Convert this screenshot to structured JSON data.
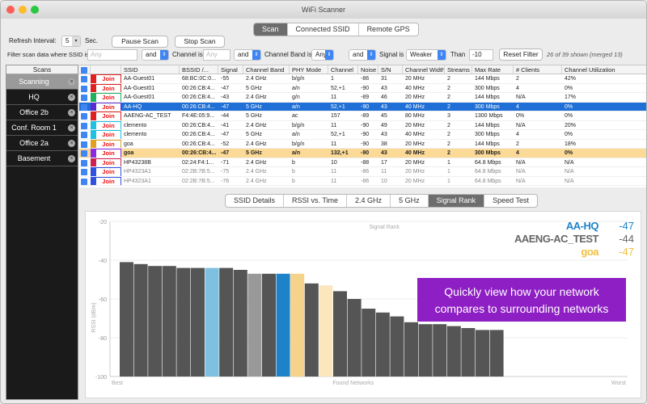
{
  "window": {
    "title": "WiFi Scanner"
  },
  "top_tabs": [
    "Scan",
    "Connected SSID",
    "Remote GPS"
  ],
  "controls": {
    "refresh_label": "Refresh Interval:",
    "refresh_value": "5",
    "refresh_unit": "Sec.",
    "pause_label": "Pause Scan",
    "stop_label": "Stop Scan"
  },
  "filter": {
    "prefix": "Filter scan data where SSID is",
    "ssid_placeholder": "Any",
    "and1": "and",
    "channel_label": "Channel is",
    "channel_placeholder": "Any",
    "and2": "and",
    "band_label": "Channel Band is",
    "band_value": "Any",
    "and3": "and",
    "signal_label": "Signal is",
    "signal_value": "Weaker",
    "than_label": "Than",
    "than_value": "-10",
    "reset_label": "Reset Filter",
    "summary": "26 of 39 shown (merged 13)"
  },
  "sidebar": {
    "header": "Scans",
    "items": [
      "Scanning",
      "HQ",
      "Office 2b",
      "Conf. Room 1",
      "Office 2a",
      "Basement"
    ]
  },
  "table": {
    "columns": [
      "SSID",
      "BSSID /...",
      "Signal",
      "Channel Band",
      "PHY Mode",
      "Channel",
      "Noise",
      "S/N",
      "Channel Width",
      "Streams",
      "Max Rate",
      "# Clients",
      "Channel Utilization"
    ],
    "join_label": "Join",
    "rows": [
      {
        "color": "#e02020",
        "ssid": "AA-Guest01",
        "bssid": "68:BC:0C:0...",
        "signal": "-55",
        "band": "2.4 GHz",
        "phy": "b/g/n",
        "channel": "1",
        "noise": "-86",
        "sn": "31",
        "width": "20 MHz",
        "streams": "2",
        "rate": "144 Mbps",
        "clients": "2",
        "util": "42%"
      },
      {
        "color": "#e02020",
        "ssid": "AA-Guest01",
        "bssid": "00:26:CB:4...",
        "signal": "-47",
        "band": "5 GHz",
        "phy": "a/n",
        "channel": "52,+1",
        "noise": "-90",
        "sn": "43",
        "width": "40 MHz",
        "streams": "2",
        "rate": "300 Mbps",
        "clients": "4",
        "util": "0%"
      },
      {
        "color": "#20b060",
        "ssid": "AA-Guest01",
        "bssid": "00:26:CB:4...",
        "signal": "-43",
        "band": "2.4 GHz",
        "phy": "g/n",
        "channel": "11",
        "noise": "-89",
        "sn": "46",
        "width": "20 MHz",
        "streams": "2",
        "rate": "144 Mbps",
        "clients": "N/A",
        "util": "17%"
      },
      {
        "color": "#5a2bd0",
        "ssid": "AA-HQ",
        "bssid": "00:26:CB:4...",
        "signal": "-47",
        "band": "5 GHz",
        "phy": "a/n",
        "channel": "52,+1",
        "noise": "-90",
        "sn": "43",
        "width": "40 MHz",
        "streams": "2",
        "rate": "300 Mbps",
        "clients": "4",
        "util": "0%"
      },
      {
        "color": "#e02020",
        "ssid": "AAENG-AC_TEST",
        "bssid": "F4:4E:05:9...",
        "signal": "-44",
        "band": "5 GHz",
        "phy": "ac",
        "channel": "157",
        "noise": "-89",
        "sn": "45",
        "width": "80 MHz",
        "streams": "3",
        "rate": "1300 Mbps",
        "clients": "0%",
        "util": "0%"
      },
      {
        "color": "#20c0e0",
        "ssid": "clemento",
        "bssid": "00:26:CB:4...",
        "signal": "-41",
        "band": "2.4 GHz",
        "phy": "b/g/n",
        "channel": "11",
        "noise": "-90",
        "sn": "49",
        "width": "20 MHz",
        "streams": "2",
        "rate": "144 Mbps",
        "clients": "N/A",
        "util": "20%"
      },
      {
        "color": "#20c0e0",
        "ssid": "clemento",
        "bssid": "00:26:CB:4...",
        "signal": "-47",
        "band": "5 GHz",
        "phy": "a/n",
        "channel": "52,+1",
        "noise": "-90",
        "sn": "43",
        "width": "40 MHz",
        "streams": "2",
        "rate": "300 Mbps",
        "clients": "4",
        "util": "0%"
      },
      {
        "color": "#e0a020",
        "ssid": "goa",
        "bssid": "00:26:CB:4...",
        "signal": "-52",
        "band": "2.4 GHz",
        "phy": "b/g/n",
        "channel": "11",
        "noise": "-90",
        "sn": "38",
        "width": "20 MHz",
        "streams": "2",
        "rate": "144 Mbps",
        "clients": "2",
        "util": "18%"
      },
      {
        "color": "#8a2be2",
        "ssid": "goa",
        "bssid": "00:26:CB:4...",
        "signal": "-47",
        "band": "5 GHz",
        "phy": "a/n",
        "channel": "132,+1",
        "noise": "-90",
        "sn": "43",
        "width": "40 MHz",
        "streams": "2",
        "rate": "300 Mbps",
        "clients": "4",
        "util": "0%"
      },
      {
        "color": "#d02050",
        "ssid": "HP43238B",
        "bssid": "02:24:F4:1...",
        "signal": "-71",
        "band": "2.4 GHz",
        "phy": "b",
        "channel": "10",
        "noise": "-88",
        "sn": "17",
        "width": "20 MHz",
        "streams": "1",
        "rate": "64.8 Mbps",
        "clients": "N/A",
        "util": "N/A"
      },
      {
        "color": "#3050e0",
        "ssid": "HP4323A1",
        "bssid": "02:2B:7B:5...",
        "signal": "-75",
        "band": "2.4 GHz",
        "phy": "b",
        "channel": "11",
        "noise": "-86",
        "sn": "11",
        "width": "20 MHz",
        "streams": "1",
        "rate": "64.8 Mbps",
        "clients": "N/A",
        "util": "N/A"
      },
      {
        "color": "#3050e0",
        "ssid": "HP4323A1",
        "bssid": "02:2B:7B:5...",
        "signal": "-76",
        "band": "2.4 GHz",
        "phy": "b",
        "channel": "11",
        "noise": "-86",
        "sn": "10",
        "width": "20 MHz",
        "streams": "1",
        "rate": "64.8 Mbps",
        "clients": "N/A",
        "util": "N/A"
      }
    ]
  },
  "detail_tabs": [
    "SSID Details",
    "RSSI vs. Time",
    "2.4 GHz",
    "5 GHz",
    "Signal Rank",
    "Speed Test"
  ],
  "chart_data": {
    "type": "bar",
    "title": "Signal Rank",
    "ylabel": "RSSI (dBm)",
    "xlabel": "Found Networks",
    "x_start_label": "Best",
    "x_end_label": "Worst",
    "ylim": [
      -100,
      -20
    ],
    "yticks": [
      "-20",
      "-40",
      "-60",
      "-80",
      "-100"
    ],
    "values": [
      -41,
      -42,
      -43,
      -43,
      -44,
      -44,
      -44,
      -44,
      -45,
      -47,
      -47,
      -47,
      -47,
      -52,
      -53,
      -56,
      -60,
      -65,
      -67,
      -69,
      -72,
      -73,
      -73,
      -74,
      -75,
      -76,
      -76
    ],
    "bar_colors": [
      "#555",
      "#555",
      "#555",
      "#555",
      "#555",
      "#555",
      "#7fbfdf",
      "#555",
      "#555",
      "#999",
      "#555",
      "#1e82c8",
      "#f5d38a",
      "#555",
      "#fbe6be",
      "#555",
      "#555",
      "#555",
      "#555",
      "#555",
      "#555",
      "#555",
      "#555",
      "#555",
      "#555",
      "#555",
      "#555"
    ],
    "legend": [
      {
        "name": "AA-HQ",
        "value": "-47",
        "color": "#1e82c8"
      },
      {
        "name": "AAENG-AC_TEST",
        "value": "-44",
        "color": "#666666"
      },
      {
        "name": "goa",
        "value": "-47",
        "color": "#f0c040"
      }
    ],
    "callout": "Quickly view how your network compares to surrounding networks"
  }
}
